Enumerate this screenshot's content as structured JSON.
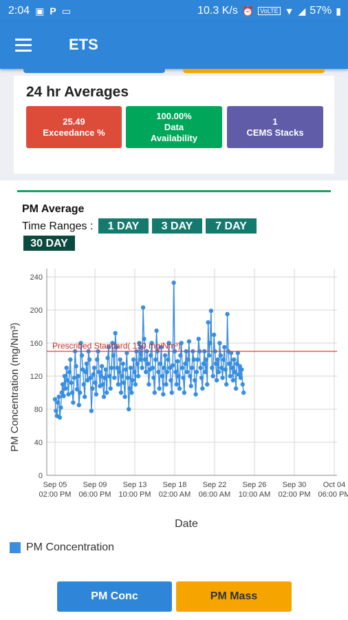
{
  "status_bar": {
    "time": "2:04",
    "left_icons": [
      "image-icon",
      "p-icon",
      "laptop-icon"
    ],
    "speed": "10.3 K/s",
    "network": "VoLTE",
    "battery": "57%"
  },
  "toolbar": {
    "title": "ETS"
  },
  "averages": {
    "heading": "24 hr Averages",
    "tiles": [
      {
        "value": "25.49",
        "label": "Exceedance %",
        "color": "#dd4b39"
      },
      {
        "value": "100.00%",
        "label_line1": "Data",
        "label_line2": "Availability",
        "color": "#00a65a"
      },
      {
        "value": "1",
        "label": "CEMS Stacks",
        "color": "#605ca8"
      }
    ]
  },
  "pm": {
    "title": "PM Average",
    "time_ranges_label": "Time Ranges :",
    "ranges": [
      "1 DAY",
      "3 DAY",
      "7 DAY",
      "30 DAY"
    ],
    "selected_range": "30 DAY"
  },
  "chart_data": {
    "type": "scatter",
    "title": "",
    "xlabel": "Date",
    "ylabel": "PM Concentration (mg/Nm³)",
    "ylim": [
      0,
      250
    ],
    "yticks": [
      0,
      40,
      80,
      120,
      160,
      200,
      240
    ],
    "xticks": [
      {
        "l1": "Sep 05",
        "l2": "02:00 PM"
      },
      {
        "l1": "Sep 09",
        "l2": "06:00 PM"
      },
      {
        "l1": "Sep 13",
        "l2": "10:00 PM"
      },
      {
        "l1": "Sep 18",
        "l2": "02:00 AM"
      },
      {
        "l1": "Sep 22",
        "l2": "06:00 AM"
      },
      {
        "l1": "Sep 26",
        "l2": "10:00 AM"
      },
      {
        "l1": "Sep 30",
        "l2": "02:00 PM"
      },
      {
        "l1": "Oct 04",
        "l2": "06:00 PM"
      }
    ],
    "reference_line": {
      "value": 150,
      "label": "Prescribed Standard( 150 mg/Nm³)",
      "color": "#e53935"
    },
    "series": [
      {
        "name": "PM Concentration",
        "color": "#3a8ee0",
        "x_unit": "days since Sep 05 02:00 PM",
        "points": [
          [
            0.0,
            92
          ],
          [
            0.1,
            78
          ],
          [
            0.2,
            72
          ],
          [
            0.3,
            88
          ],
          [
            0.4,
            95
          ],
          [
            0.5,
            70
          ],
          [
            0.6,
            82
          ],
          [
            0.7,
            100
          ],
          [
            0.8,
            110
          ],
          [
            0.9,
            96
          ],
          [
            1.0,
            120
          ],
          [
            1.1,
            105
          ],
          [
            1.2,
            130
          ],
          [
            1.3,
            115
          ],
          [
            1.4,
            98
          ],
          [
            1.5,
            125
          ],
          [
            1.6,
            140
          ],
          [
            1.7,
            112
          ],
          [
            1.8,
            100
          ],
          [
            1.9,
            88
          ],
          [
            2.0,
            118
          ],
          [
            2.1,
            150
          ],
          [
            2.2,
            132
          ],
          [
            2.3,
            104
          ],
          [
            2.4,
            120
          ],
          [
            2.5,
            85
          ],
          [
            2.6,
            100
          ],
          [
            2.7,
            160
          ],
          [
            2.8,
            145
          ],
          [
            2.9,
            128
          ],
          [
            3.0,
            110
          ],
          [
            3.1,
            95
          ],
          [
            3.2,
            125
          ],
          [
            3.3,
            135
          ],
          [
            3.4,
            115
          ],
          [
            3.5,
            150
          ],
          [
            3.6,
            140
          ],
          [
            3.7,
            118
          ],
          [
            3.8,
            78
          ],
          [
            3.9,
            105
          ],
          [
            4.0,
            122
          ],
          [
            4.1,
            130
          ],
          [
            4.2,
            112
          ],
          [
            4.3,
            98
          ],
          [
            4.4,
            140
          ],
          [
            4.5,
            150
          ],
          [
            4.6,
            125
          ],
          [
            4.7,
            108
          ],
          [
            4.8,
            120
          ],
          [
            4.9,
            132
          ],
          [
            5.0,
            110
          ],
          [
            5.1,
            95
          ],
          [
            5.2,
            118
          ],
          [
            5.3,
            128
          ],
          [
            5.4,
            100
          ],
          [
            5.5,
            142
          ],
          [
            5.6,
            155
          ],
          [
            5.7,
            120
          ],
          [
            5.8,
            105
          ],
          [
            5.9,
            130
          ],
          [
            6.0,
            160
          ],
          [
            6.1,
            145
          ],
          [
            6.2,
            118
          ],
          [
            6.3,
            172
          ],
          [
            6.4,
            155
          ],
          [
            6.5,
            130
          ],
          [
            6.6,
            110
          ],
          [
            6.7,
            125
          ],
          [
            6.8,
            140
          ],
          [
            6.9,
            100
          ],
          [
            7.0,
            120
          ],
          [
            7.1,
            135
          ],
          [
            7.2,
            112
          ],
          [
            7.3,
            95
          ],
          [
            7.4,
            128
          ],
          [
            7.5,
            148
          ],
          [
            7.6,
            118
          ],
          [
            7.7,
            80
          ],
          [
            7.8,
            105
          ],
          [
            7.9,
            130
          ],
          [
            8.0,
            100
          ],
          [
            8.1,
            115
          ],
          [
            8.2,
            140
          ],
          [
            8.3,
            125
          ],
          [
            8.4,
            110
          ],
          [
            8.5,
            150
          ],
          [
            8.6,
            135
          ],
          [
            8.7,
            120
          ],
          [
            8.8,
            160
          ],
          [
            8.9,
            140
          ],
          [
            9.0,
            155
          ],
          [
            9.1,
            130
          ],
          [
            9.2,
            203
          ],
          [
            9.3,
            165
          ],
          [
            9.4,
            140
          ],
          [
            9.5,
            125
          ],
          [
            9.6,
            150
          ],
          [
            9.7,
            135
          ],
          [
            9.8,
            110
          ],
          [
            9.9,
            128
          ],
          [
            10.0,
            145
          ],
          [
            10.1,
            160
          ],
          [
            10.2,
            130
          ],
          [
            10.3,
            118
          ],
          [
            10.4,
            100
          ],
          [
            10.5,
            140
          ],
          [
            10.6,
            175
          ],
          [
            10.7,
            150
          ],
          [
            10.8,
            125
          ],
          [
            10.9,
            105
          ],
          [
            11.0,
            135
          ],
          [
            11.1,
            155
          ],
          [
            11.2,
            120
          ],
          [
            11.3,
            98
          ],
          [
            11.4,
            130
          ],
          [
            11.5,
            145
          ],
          [
            11.6,
            110
          ],
          [
            11.7,
            125
          ],
          [
            11.8,
            140
          ],
          [
            11.9,
            160
          ],
          [
            12.0,
            130
          ],
          [
            12.1,
            115
          ],
          [
            12.2,
            100
          ],
          [
            12.3,
            133
          ],
          [
            12.4,
            233
          ],
          [
            12.5,
            150
          ],
          [
            12.6,
            125
          ],
          [
            12.7,
            110
          ],
          [
            12.8,
            138
          ],
          [
            12.9,
            120
          ],
          [
            13.0,
            105
          ],
          [
            13.1,
            145
          ],
          [
            13.2,
            160
          ],
          [
            13.3,
            130
          ],
          [
            13.4,
            118
          ],
          [
            13.5,
            100
          ],
          [
            13.6,
            135
          ],
          [
            13.7,
            150
          ],
          [
            13.8,
            125
          ],
          [
            13.9,
            140
          ],
          [
            14.0,
            162
          ],
          [
            14.1,
            120
          ],
          [
            14.2,
            108
          ],
          [
            14.3,
            130
          ],
          [
            14.4,
            150
          ],
          [
            14.5,
            140
          ],
          [
            14.6,
            115
          ],
          [
            14.7,
            98
          ],
          [
            14.8,
            125
          ],
          [
            14.9,
            140
          ],
          [
            15.0,
            165
          ],
          [
            15.1,
            150
          ],
          [
            15.2,
            130
          ],
          [
            15.3,
            118
          ],
          [
            15.4,
            105
          ],
          [
            15.5,
            135
          ],
          [
            15.6,
            150
          ],
          [
            15.7,
            125
          ],
          [
            15.8,
            140
          ],
          [
            15.9,
            110
          ],
          [
            16.0,
            185
          ],
          [
            16.1,
            145
          ],
          [
            16.2,
            160
          ],
          [
            16.3,
            199
          ],
          [
            16.4,
            130
          ],
          [
            16.5,
            120
          ],
          [
            16.6,
            170
          ],
          [
            16.7,
            150
          ],
          [
            16.8,
            135
          ],
          [
            16.9,
            115
          ],
          [
            17.0,
            140
          ],
          [
            17.1,
            125
          ],
          [
            17.2,
            160
          ],
          [
            17.3,
            145
          ],
          [
            17.4,
            130
          ],
          [
            17.5,
            118
          ],
          [
            17.6,
            140
          ],
          [
            17.7,
            155
          ],
          [
            17.8,
            128
          ],
          [
            17.9,
            110
          ],
          [
            18.0,
            195
          ],
          [
            18.1,
            150
          ],
          [
            18.2,
            135
          ],
          [
            18.3,
            120
          ],
          [
            18.4,
            148
          ],
          [
            18.5,
            130
          ],
          [
            18.6,
            115
          ],
          [
            18.7,
            140
          ],
          [
            18.8,
            125
          ],
          [
            18.9,
            105
          ],
          [
            19.0,
            135
          ],
          [
            19.1,
            148
          ],
          [
            19.2,
            122
          ],
          [
            19.3,
            132
          ],
          [
            19.4,
            118
          ],
          [
            19.5,
            128
          ],
          [
            19.6,
            110
          ],
          [
            19.7,
            100
          ]
        ]
      }
    ]
  },
  "legend": {
    "label": "PM Concentration"
  },
  "buttons": {
    "pm_conc": "PM Conc",
    "pm_mass": "PM Mass"
  }
}
